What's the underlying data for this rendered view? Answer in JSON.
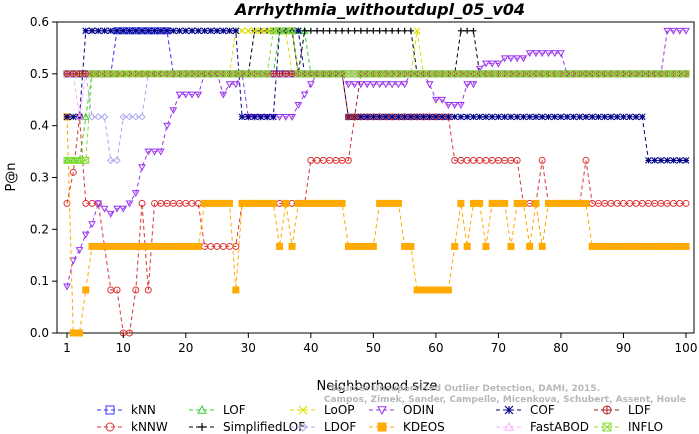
{
  "chart_data": {
    "type": "line",
    "title": "Arrhythmia_withoutdupl_05_v04",
    "xlabel": "Neighborhood size",
    "ylabel": "P@n",
    "xlim": [
      1,
      100
    ],
    "ylim": [
      0,
      0.6
    ],
    "xticks": [
      1,
      10,
      20,
      30,
      40,
      50,
      60,
      70,
      80,
      90,
      100
    ],
    "yticks": [
      0.0,
      0.1,
      0.2,
      0.3,
      0.4,
      0.5,
      0.6
    ],
    "grid": false,
    "legend_position": "bottom",
    "watermark": [
      "Source: Unsupervised Outlier Detection, DAMI, 2015.",
      "Campos, Zimek, Sander, Campello, Micenkova, Schubert, Assent, Houle"
    ],
    "series": [
      {
        "name": "kNN",
        "color": "#3333ff",
        "marker": "square",
        "segments": [
          [
            1,
            0.5
          ],
          [
            8,
            0.5
          ],
          [
            9,
            0.583
          ],
          [
            17,
            0.583
          ],
          [
            18,
            0.5
          ],
          [
            100,
            0.5
          ]
        ]
      },
      {
        "name": "kNNW",
        "color": "#dd3333",
        "marker": "circle",
        "segments": [
          [
            1,
            0.25
          ],
          [
            2,
            0.31
          ],
          [
            3,
            0.417
          ],
          [
            4,
            0.25
          ],
          [
            6,
            0.25
          ],
          [
            7,
            0.167
          ],
          [
            8,
            0.083
          ],
          [
            10,
            0.0
          ],
          [
            11,
            0.0
          ],
          [
            12,
            0.083
          ],
          [
            13,
            0.25
          ],
          [
            14,
            0.083
          ],
          [
            15,
            0.25
          ],
          [
            22,
            0.25
          ],
          [
            23,
            0.167
          ],
          [
            28,
            0.167
          ],
          [
            29,
            0.25
          ],
          [
            39,
            0.25
          ],
          [
            40,
            0.333
          ],
          [
            46,
            0.333
          ],
          [
            47,
            0.417
          ],
          [
            62,
            0.417
          ],
          [
            63,
            0.333
          ],
          [
            73,
            0.333
          ],
          [
            74,
            0.25
          ],
          [
            76,
            0.25
          ],
          [
            77,
            0.333
          ],
          [
            78,
            0.25
          ],
          [
            83,
            0.25
          ],
          [
            84,
            0.333
          ],
          [
            85,
            0.25
          ],
          [
            100,
            0.25
          ]
        ]
      },
      {
        "name": "LOF",
        "color": "#33cc33",
        "marker": "triangle",
        "segments": [
          [
            1,
            0.333
          ],
          [
            3,
            0.333
          ],
          [
            4,
            0.417
          ],
          [
            5,
            0.5
          ],
          [
            34,
            0.5
          ],
          [
            35,
            0.583
          ],
          [
            39,
            0.583
          ],
          [
            40,
            0.5
          ],
          [
            100,
            0.5
          ]
        ]
      },
      {
        "name": "SimplifiedLOF",
        "color": "#000000",
        "marker": "plus",
        "segments": [
          [
            1,
            0.5
          ],
          [
            30,
            0.5
          ],
          [
            31,
            0.583
          ],
          [
            37,
            0.583
          ],
          [
            38,
            0.5
          ],
          [
            39,
            0.583
          ],
          [
            56,
            0.583
          ],
          [
            57,
            0.5
          ],
          [
            63,
            0.5
          ],
          [
            64,
            0.583
          ],
          [
            66,
            0.583
          ],
          [
            67,
            0.5
          ],
          [
            100,
            0.5
          ]
        ]
      },
      {
        "name": "LoOP",
        "color": "#dddd00",
        "marker": "x",
        "segments": [
          [
            1,
            0.5
          ],
          [
            27,
            0.5
          ],
          [
            28,
            0.583
          ],
          [
            36,
            0.583
          ],
          [
            37,
            0.5
          ],
          [
            56,
            0.5
          ],
          [
            57,
            0.583
          ],
          [
            58,
            0.5
          ],
          [
            100,
            0.5
          ]
        ]
      },
      {
        "name": "LDOF",
        "color": "#aaaaee",
        "marker": "diamond",
        "segments": [
          [
            1,
            0.5
          ],
          [
            5,
            0.417
          ],
          [
            7,
            0.417
          ],
          [
            8,
            0.333
          ],
          [
            9,
            0.333
          ],
          [
            10,
            0.417
          ],
          [
            12,
            0.417
          ],
          [
            14,
            0.5
          ],
          [
            100,
            0.5
          ]
        ]
      },
      {
        "name": "ODIN",
        "color": "#9933ee",
        "marker": "triangle-down",
        "segments": [
          [
            1,
            0.09
          ],
          [
            2,
            0.14
          ],
          [
            3,
            0.16
          ],
          [
            4,
            0.19
          ],
          [
            5,
            0.21
          ],
          [
            6,
            0.25
          ],
          [
            7,
            0.24
          ],
          [
            8,
            0.23
          ],
          [
            9,
            0.24
          ],
          [
            10,
            0.24
          ],
          [
            11,
            0.25
          ],
          [
            12,
            0.27
          ],
          [
            13,
            0.32
          ],
          [
            14,
            0.35
          ],
          [
            16,
            0.35
          ],
          [
            17,
            0.4
          ],
          [
            18,
            0.43
          ],
          [
            19,
            0.46
          ],
          [
            22,
            0.46
          ],
          [
            23,
            0.5
          ],
          [
            25,
            0.5
          ],
          [
            26,
            0.46
          ],
          [
            27,
            0.48
          ],
          [
            28,
            0.48
          ],
          [
            29,
            0.5
          ],
          [
            30,
            0.417
          ],
          [
            37,
            0.417
          ],
          [
            38,
            0.44
          ],
          [
            39,
            0.46
          ],
          [
            40,
            0.48
          ],
          [
            41,
            0.5
          ],
          [
            45,
            0.5
          ],
          [
            46,
            0.48
          ],
          [
            55,
            0.48
          ],
          [
            56,
            0.5
          ],
          [
            58,
            0.5
          ],
          [
            59,
            0.48
          ],
          [
            60,
            0.45
          ],
          [
            62,
            0.44
          ],
          [
            64,
            0.44
          ],
          [
            65,
            0.48
          ],
          [
            67,
            0.51
          ],
          [
            68,
            0.52
          ],
          [
            70,
            0.52
          ],
          [
            71,
            0.53
          ],
          [
            74,
            0.53
          ],
          [
            75,
            0.54
          ],
          [
            78,
            0.54
          ],
          [
            80,
            0.54
          ],
          [
            81,
            0.5
          ],
          [
            96,
            0.5
          ],
          [
            97,
            0.583
          ],
          [
            100,
            0.583
          ]
        ]
      },
      {
        "name": "KDEOS",
        "color": "#ffaa00",
        "marker": "square-filled",
        "segments": [
          [
            1,
            0.417
          ],
          [
            2,
            0.0
          ],
          [
            3,
            0.0
          ],
          [
            4,
            0.083
          ],
          [
            5,
            0.167
          ],
          [
            22,
            0.167
          ],
          [
            23,
            0.25
          ],
          [
            27,
            0.25
          ],
          [
            28,
            0.083
          ],
          [
            29,
            0.25
          ],
          [
            34,
            0.25
          ],
          [
            35,
            0.167
          ],
          [
            36,
            0.25
          ],
          [
            37,
            0.167
          ],
          [
            38,
            0.25
          ],
          [
            45,
            0.25
          ],
          [
            46,
            0.167
          ],
          [
            50,
            0.167
          ],
          [
            51,
            0.25
          ],
          [
            54,
            0.25
          ],
          [
            55,
            0.167
          ],
          [
            56,
            0.167
          ],
          [
            57,
            0.083
          ],
          [
            62,
            0.083
          ],
          [
            63,
            0.167
          ],
          [
            64,
            0.25
          ],
          [
            65,
            0.167
          ],
          [
            66,
            0.25
          ],
          [
            67,
            0.25
          ],
          [
            68,
            0.167
          ],
          [
            69,
            0.25
          ],
          [
            71,
            0.25
          ],
          [
            72,
            0.167
          ],
          [
            73,
            0.25
          ],
          [
            74,
            0.25
          ],
          [
            75,
            0.167
          ],
          [
            76,
            0.25
          ],
          [
            77,
            0.167
          ],
          [
            78,
            0.25
          ],
          [
            84,
            0.25
          ],
          [
            85,
            0.167
          ],
          [
            100,
            0.167
          ]
        ]
      },
      {
        "name": "COF",
        "color": "#000088",
        "marker": "star",
        "segments": [
          [
            1,
            0.417
          ],
          [
            2,
            0.417
          ],
          [
            3,
            0.417
          ],
          [
            4,
            0.583
          ],
          [
            28,
            0.583
          ],
          [
            29,
            0.417
          ],
          [
            34,
            0.417
          ],
          [
            35,
            0.583
          ],
          [
            38,
            0.583
          ],
          [
            39,
            0.5
          ],
          [
            45,
            0.5
          ],
          [
            46,
            0.417
          ],
          [
            93,
            0.417
          ],
          [
            94,
            0.333
          ],
          [
            100,
            0.333
          ]
        ]
      },
      {
        "name": "FastABOD",
        "color": "#ffaaff",
        "marker": "triangle",
        "segments": [
          [
            1,
            0.5
          ],
          [
            2,
            0.5
          ],
          [
            3,
            0.417
          ],
          [
            4,
            0.5
          ],
          [
            100,
            0.5
          ]
        ]
      },
      {
        "name": "LDF",
        "color": "#aa2222",
        "marker": "circle-plus",
        "segments": [
          [
            1,
            0.5
          ],
          [
            45,
            0.5
          ],
          [
            46,
            0.417
          ],
          [
            47,
            0.417
          ],
          [
            48,
            0.5
          ],
          [
            100,
            0.5
          ]
        ]
      },
      {
        "name": "INFLO",
        "color": "#88dd33",
        "marker": "square-x",
        "segments": [
          [
            1,
            0.333
          ],
          [
            4,
            0.333
          ],
          [
            5,
            0.5
          ],
          [
            33,
            0.5
          ],
          [
            34,
            0.583
          ],
          [
            37,
            0.583
          ],
          [
            38,
            0.5
          ],
          [
            100,
            0.5
          ]
        ]
      }
    ]
  }
}
